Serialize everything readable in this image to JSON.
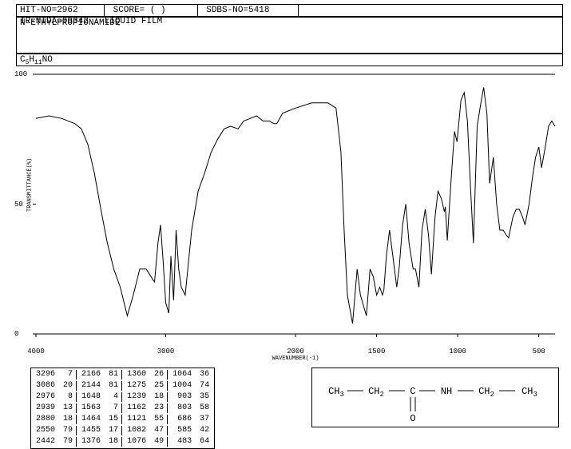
{
  "header": {
    "hit_no": "HIT-NO=2962",
    "score": "SCORE=  (  )",
    "sdbs_no": "SDBS-NO=5418",
    "spec_id": "IR-NIDA-09342 : LIQUID FILM",
    "compound": "N-ETHYLPROPIONAMIDE",
    "formula_plain": "C5H11NO",
    "formula_parts": [
      "C",
      "5",
      "H",
      "11",
      "NO"
    ]
  },
  "chart": {
    "type": "line",
    "xlabel": "WAVENUMBER(-1)",
    "ylabel": "TRANSMITTANCE(%)",
    "ylim": [
      0,
      100
    ],
    "xlim_display": [
      4000,
      400
    ],
    "y_ticks": [
      0,
      50,
      100
    ],
    "x_ticks": [
      4000,
      3000,
      2000,
      1500,
      1000,
      500
    ],
    "line_color": "#000000",
    "background_color": "#ffffff",
    "border_color": "#000000",
    "data": [
      [
        4000,
        83
      ],
      [
        3900,
        84
      ],
      [
        3800,
        83
      ],
      [
        3700,
        81
      ],
      [
        3650,
        79
      ],
      [
        3600,
        73
      ],
      [
        3550,
        62
      ],
      [
        3500,
        48
      ],
      [
        3450,
        35
      ],
      [
        3400,
        25
      ],
      [
        3350,
        18
      ],
      [
        3296,
        7
      ],
      [
        3250,
        15
      ],
      [
        3200,
        25
      ],
      [
        3150,
        25
      ],
      [
        3100,
        21
      ],
      [
        3086,
        20
      ],
      [
        3060,
        35
      ],
      [
        3040,
        42
      ],
      [
        3020,
        28
      ],
      [
        3000,
        12
      ],
      [
        2976,
        8
      ],
      [
        2960,
        30
      ],
      [
        2939,
        13
      ],
      [
        2920,
        40
      ],
      [
        2900,
        25
      ],
      [
        2880,
        18
      ],
      [
        2850,
        15
      ],
      [
        2800,
        40
      ],
      [
        2750,
        55
      ],
      [
        2700,
        62
      ],
      [
        2650,
        70
      ],
      [
        2600,
        75
      ],
      [
        2550,
        79
      ],
      [
        2500,
        80
      ],
      [
        2442,
        79
      ],
      [
        2400,
        82
      ],
      [
        2350,
        83
      ],
      [
        2300,
        84
      ],
      [
        2250,
        82
      ],
      [
        2200,
        82
      ],
      [
        2166,
        81
      ],
      [
        2144,
        81
      ],
      [
        2100,
        85
      ],
      [
        2050,
        86
      ],
      [
        2000,
        87
      ],
      [
        1950,
        88
      ],
      [
        1900,
        89
      ],
      [
        1850,
        89
      ],
      [
        1800,
        89
      ],
      [
        1750,
        87
      ],
      [
        1720,
        70
      ],
      [
        1700,
        40
      ],
      [
        1680,
        15
      ],
      [
        1648,
        4
      ],
      [
        1620,
        25
      ],
      [
        1600,
        15
      ],
      [
        1563,
        7
      ],
      [
        1540,
        25
      ],
      [
        1520,
        22
      ],
      [
        1500,
        15
      ],
      [
        1480,
        18
      ],
      [
        1464,
        15
      ],
      [
        1455,
        17
      ],
      [
        1440,
        30
      ],
      [
        1420,
        40
      ],
      [
        1400,
        30
      ],
      [
        1376,
        18
      ],
      [
        1360,
        26
      ],
      [
        1340,
        42
      ],
      [
        1320,
        50
      ],
      [
        1300,
        35
      ],
      [
        1275,
        25
      ],
      [
        1260,
        25
      ],
      [
        1239,
        18
      ],
      [
        1220,
        40
      ],
      [
        1200,
        48
      ],
      [
        1180,
        38
      ],
      [
        1162,
        23
      ],
      [
        1140,
        45
      ],
      [
        1121,
        55
      ],
      [
        1100,
        52
      ],
      [
        1082,
        47
      ],
      [
        1076,
        49
      ],
      [
        1064,
        36
      ],
      [
        1040,
        60
      ],
      [
        1020,
        78
      ],
      [
        1004,
        74
      ],
      [
        980,
        90
      ],
      [
        960,
        93
      ],
      [
        940,
        82
      ],
      [
        920,
        55
      ],
      [
        903,
        35
      ],
      [
        880,
        80
      ],
      [
        860,
        88
      ],
      [
        840,
        95
      ],
      [
        820,
        85
      ],
      [
        803,
        58
      ],
      [
        780,
        68
      ],
      [
        760,
        50
      ],
      [
        740,
        40
      ],
      [
        720,
        40
      ],
      [
        700,
        38
      ],
      [
        686,
        37
      ],
      [
        660,
        45
      ],
      [
        640,
        48
      ],
      [
        620,
        48
      ],
      [
        600,
        45
      ],
      [
        585,
        42
      ],
      [
        560,
        50
      ],
      [
        540,
        60
      ],
      [
        520,
        68
      ],
      [
        500,
        72
      ],
      [
        483,
        64
      ],
      [
        460,
        72
      ],
      [
        440,
        80
      ],
      [
        420,
        82
      ],
      [
        400,
        80
      ]
    ]
  },
  "peak_table": {
    "columns_per_group": 2,
    "groups": [
      [
        [
          "3296",
          "7"
        ],
        [
          "3086",
          "20"
        ],
        [
          "2976",
          "8"
        ],
        [
          "2939",
          "13"
        ],
        [
          "2880",
          "18"
        ],
        [
          "2550",
          "79"
        ],
        [
          "2442",
          "79"
        ]
      ],
      [
        [
          "2166",
          "81"
        ],
        [
          "2144",
          "81"
        ],
        [
          "1648",
          "4"
        ],
        [
          "1563",
          "7"
        ],
        [
          "1464",
          "15"
        ],
        [
          "1455",
          "17"
        ],
        [
          "1376",
          "18"
        ]
      ],
      [
        [
          "1360",
          "26"
        ],
        [
          "1275",
          "25"
        ],
        [
          "1239",
          "18"
        ],
        [
          "1162",
          "23"
        ],
        [
          "1121",
          "55"
        ],
        [
          "1082",
          "47"
        ],
        [
          "1076",
          "49"
        ]
      ],
      [
        [
          "1064",
          "36"
        ],
        [
          "1004",
          "74"
        ],
        [
          "903",
          "35"
        ],
        [
          "803",
          "58"
        ],
        [
          "686",
          "37"
        ],
        [
          "585",
          "42"
        ],
        [
          "483",
          "64"
        ]
      ]
    ]
  },
  "structure": {
    "labels": [
      "CH",
      "3",
      "CH",
      "2",
      "C",
      "NH",
      "CH",
      "2",
      "CH",
      "3"
    ],
    "dbl_bond_o": "O",
    "line_color": "#000000",
    "text_color": "#000000",
    "font_size": 12
  }
}
